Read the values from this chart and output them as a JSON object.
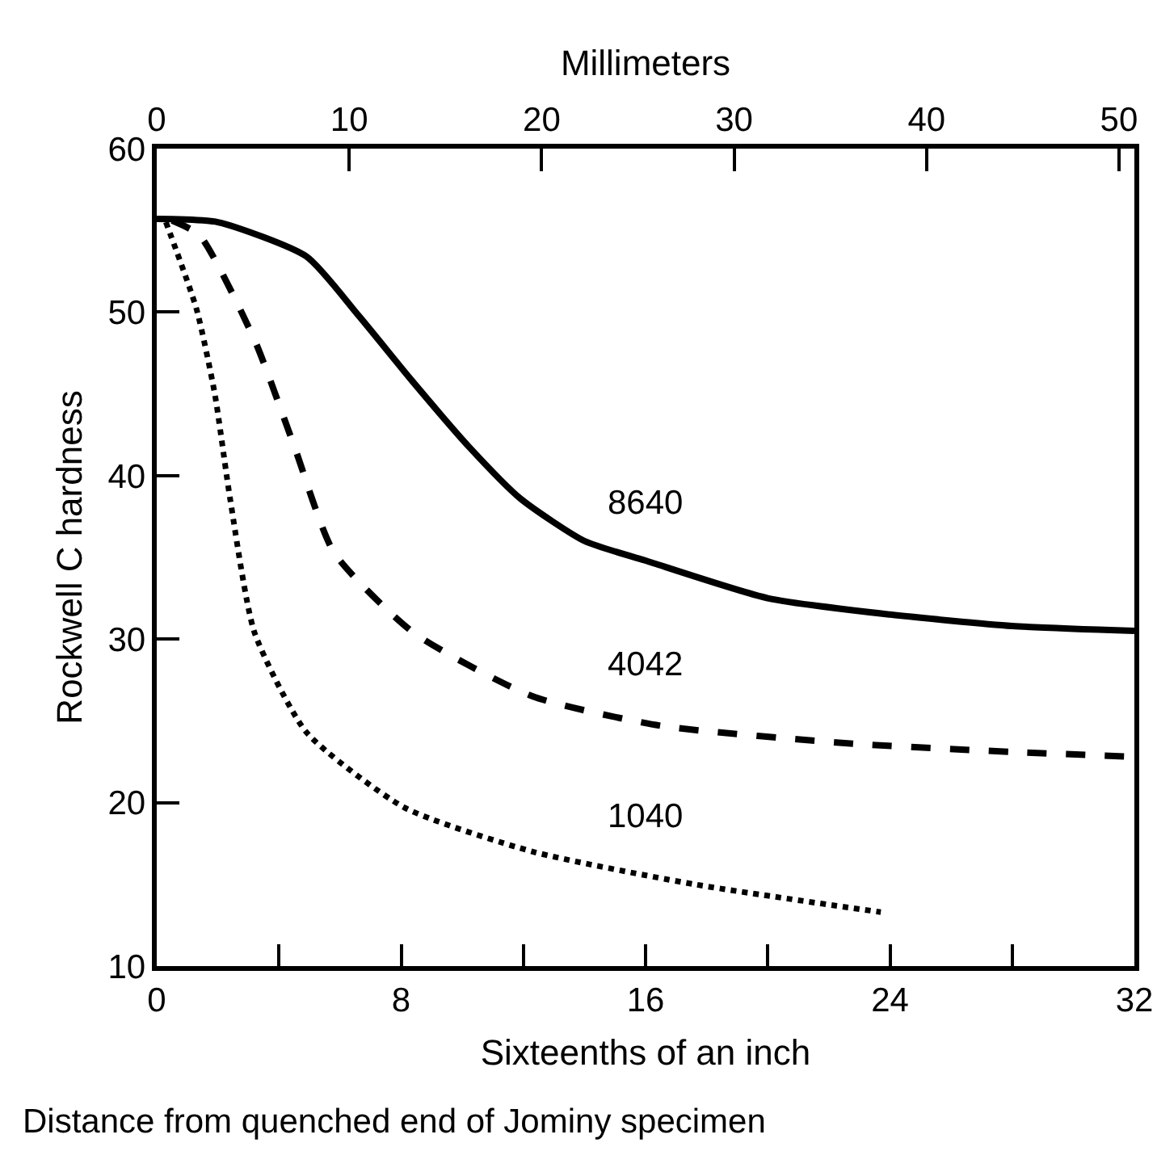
{
  "chart_data": {
    "type": "line",
    "xlabel": "Sixteenths of an inch",
    "x2label": "Millimeters",
    "ylabel": "Rockwell C hardness",
    "annotations": [
      "Distance from quenched end of Jominy specimen"
    ],
    "series": [
      {
        "name": "8640",
        "color": "#000000",
        "line_style": "solid",
        "x": [
          0,
          2,
          4.9,
          6.6,
          8.4,
          10.2,
          11.9,
          14,
          16,
          20,
          24,
          28,
          32
        ],
        "values": [
          55.7,
          55.5,
          53.4,
          49.8,
          45.7,
          41.8,
          38.6,
          36,
          34.8,
          32.5,
          31.5,
          30.8,
          30.5
        ]
      },
      {
        "name": "4042",
        "color": "#000000",
        "line_style": "dashed",
        "x": [
          0.5,
          1.4,
          3.2,
          4.5,
          5.8,
          8.4,
          12.3,
          16.5,
          22.8,
          28,
          32
        ],
        "values": [
          55.6,
          54.7,
          48.3,
          41.8,
          35.3,
          30.4,
          26.5,
          24.7,
          23.6,
          23.1,
          22.8
        ]
      },
      {
        "name": "1040",
        "color": "#000000",
        "line_style": "dotted",
        "x": [
          0.3,
          1.3,
          1.9,
          2.4,
          3.2,
          4.9,
          8.1,
          12.3,
          17.6,
          23.7
        ],
        "values": [
          55.5,
          50.2,
          45,
          38.6,
          30.4,
          24.3,
          19.7,
          17,
          15,
          13.3
        ]
      }
    ],
    "xlim": [
      0,
      32
    ],
    "xticks": [
      0,
      {
        "value": 4,
        "label": null
      },
      8,
      {
        "value": 12,
        "label": null
      },
      16,
      {
        "value": 20,
        "label": null
      },
      24,
      {
        "value": 28,
        "label": null
      },
      32
    ],
    "x2lim": [
      0,
      50.8
    ],
    "x2ticks": [
      0,
      10,
      20,
      30,
      40,
      50
    ],
    "ylim": [
      10,
      60
    ],
    "yticks": [
      10,
      20,
      30,
      40,
      50,
      60
    ],
    "grid": false,
    "legend": false
  }
}
